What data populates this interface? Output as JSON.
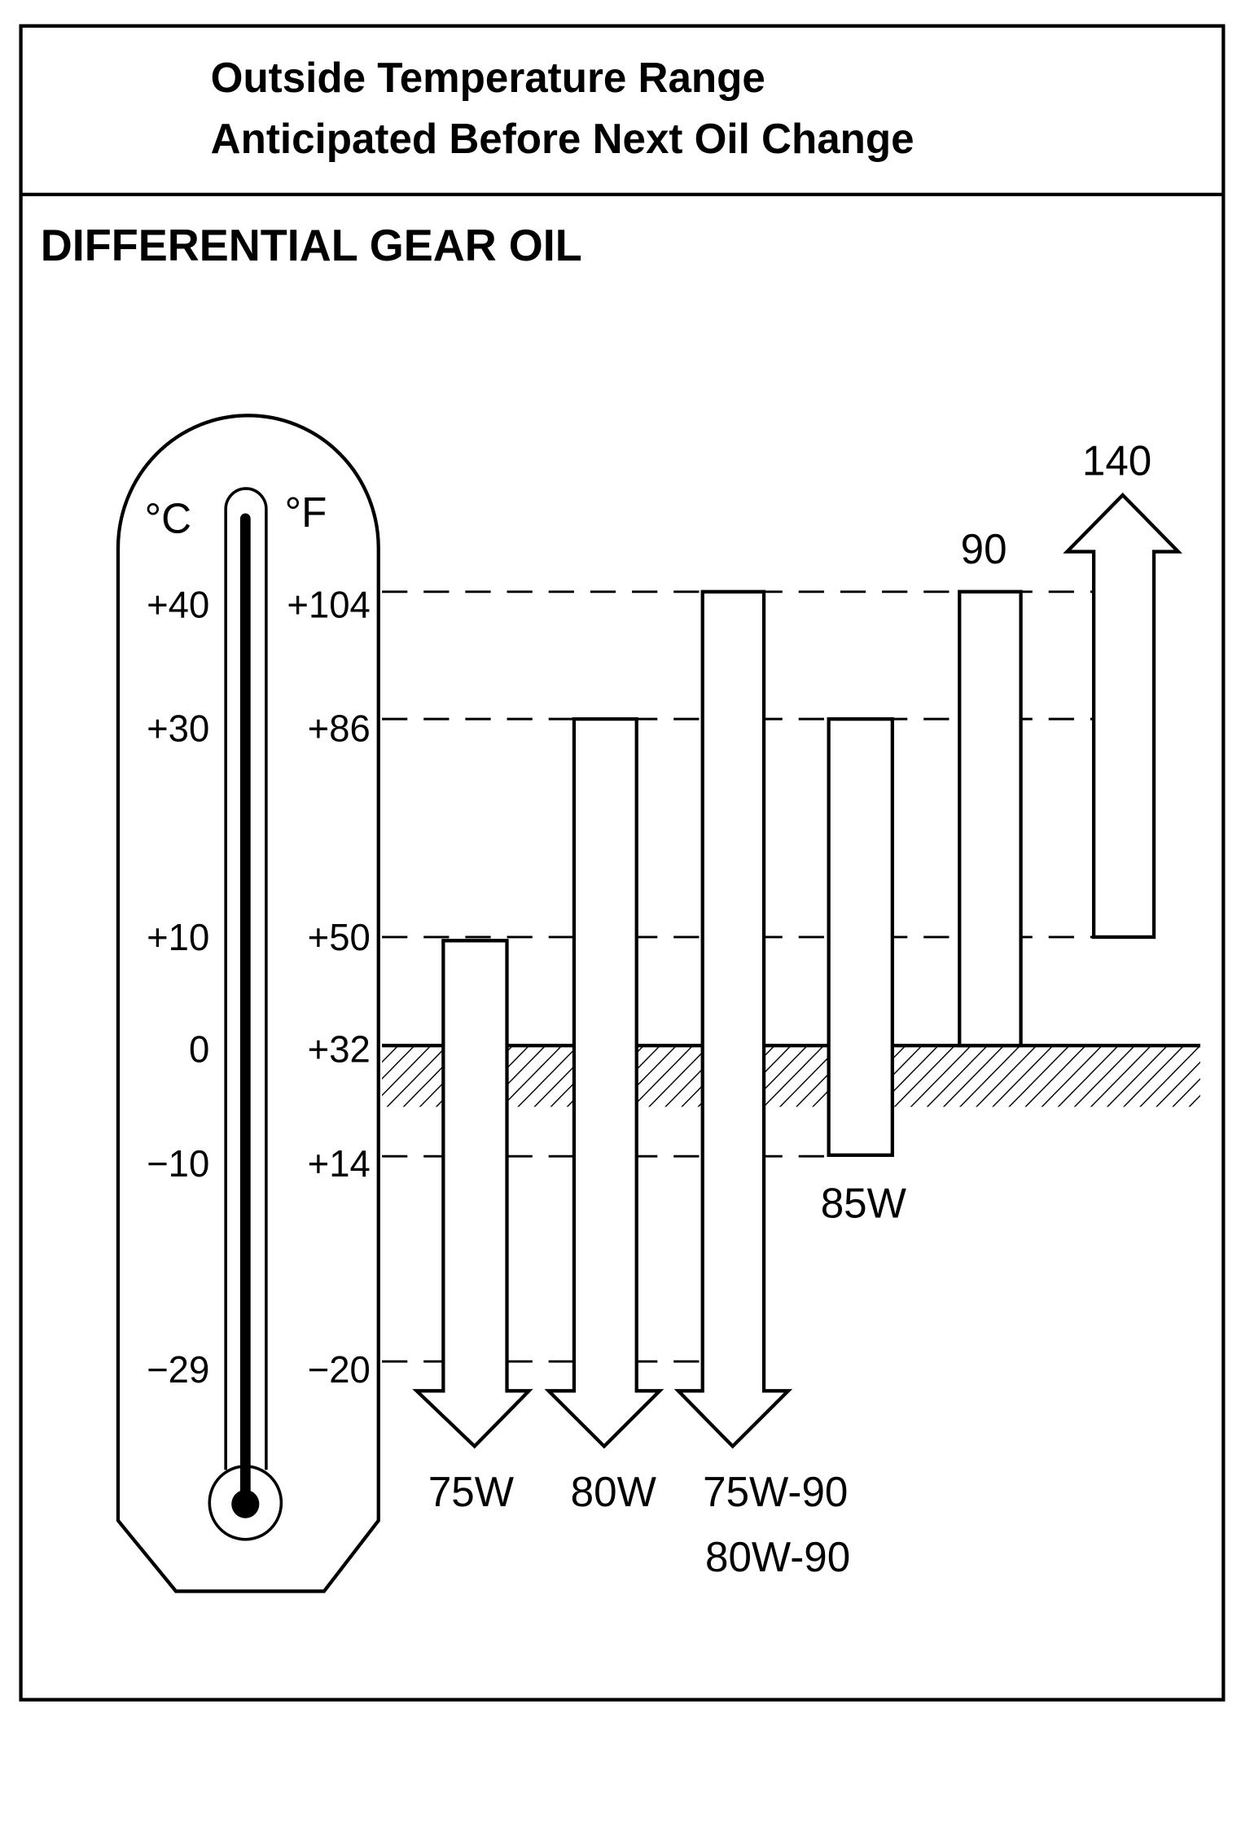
{
  "header": {
    "lines": [
      "Outside Temperature Range",
      "Anticipated Before Next Oil Change"
    ]
  },
  "title": "DIFFERENTIAL GEAR OIL",
  "thermometer": {
    "celsius_unit": "°C",
    "fahrenheit_unit": "°F",
    "celsius_labels": [
      "+40",
      "+30",
      "+10",
      "0",
      "−10",
      "−29"
    ],
    "fahrenheit_labels": [
      "+104",
      "+86",
      "+50",
      "+32",
      "+14",
      "−20"
    ]
  },
  "oil_grades": [
    "75W",
    "80W",
    "75W-90",
    "80W-90",
    "85W",
    "90",
    "140"
  ]
}
